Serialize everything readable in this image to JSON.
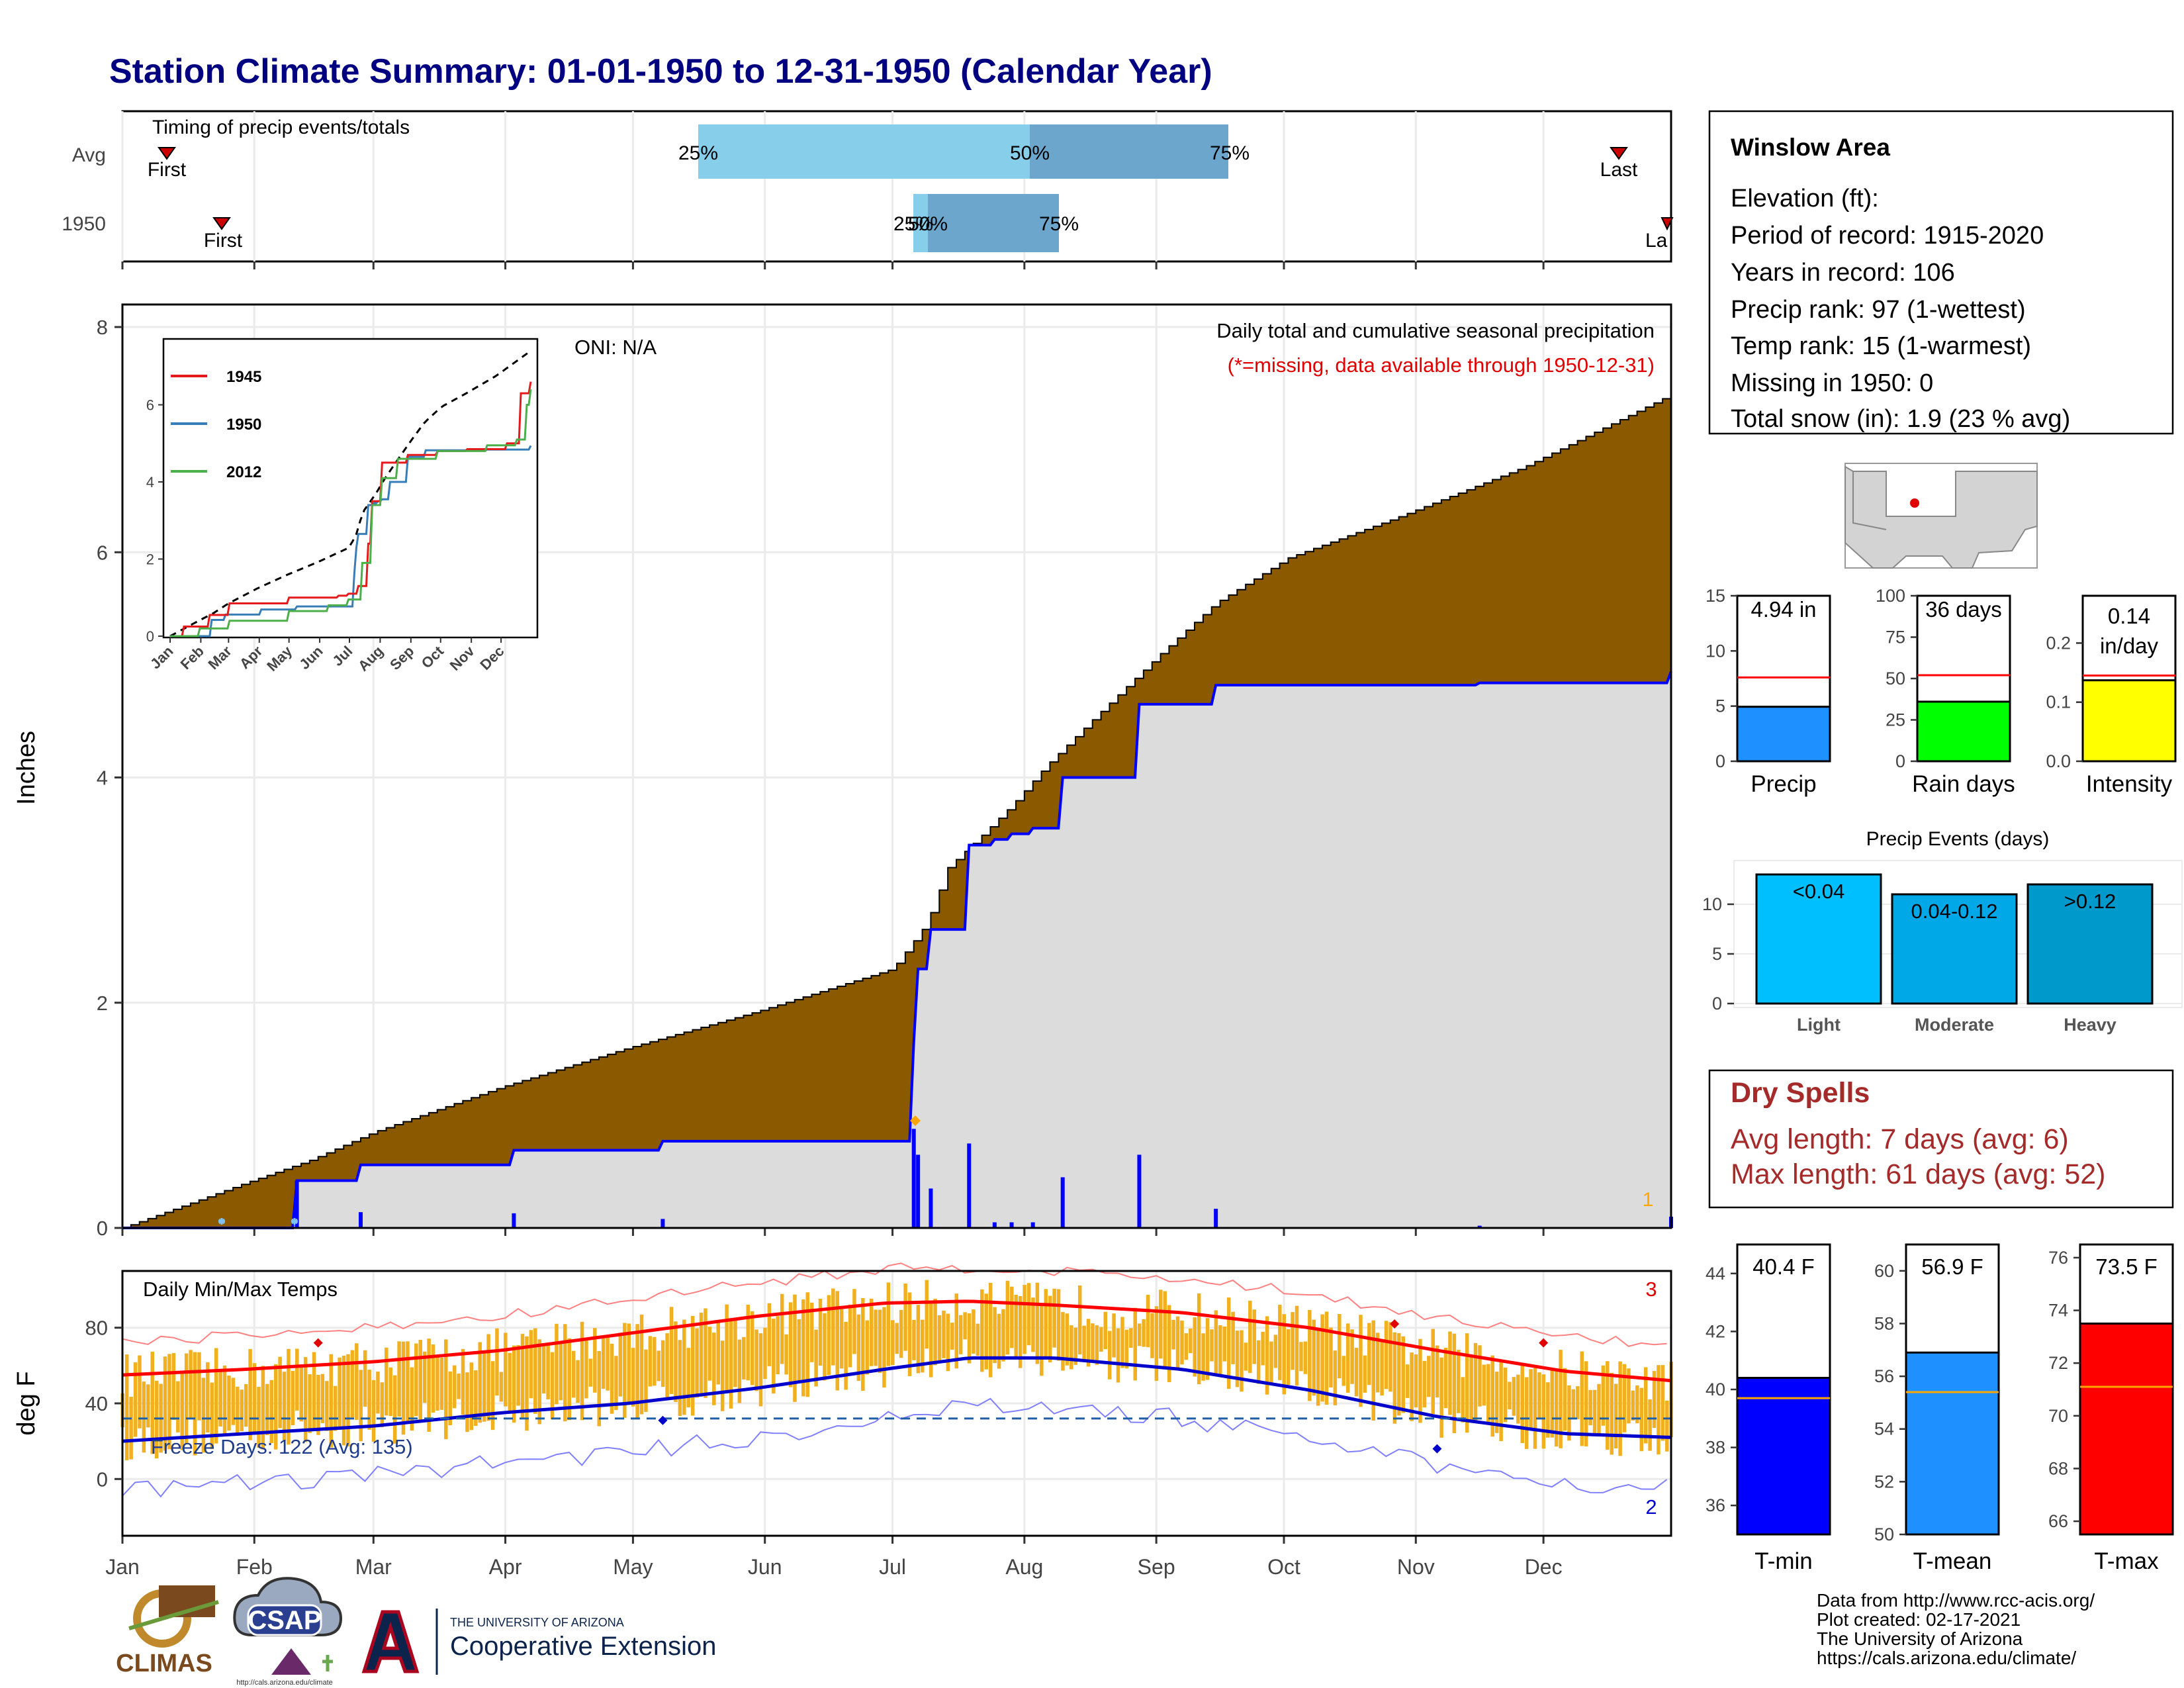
{
  "page": {
    "title": "Station Climate Summary: 01-01-1950 to 12-31-1950 (Calendar Year)",
    "colors": {
      "title": "#000080",
      "cumAvg": "#8B5A00",
      "cumYear": "#DCDCDC",
      "yearLine": "#0000FF",
      "tempBar": "#F0B020",
      "tmaxLine": "#FF0000",
      "tminLine": "#0000CD",
      "dry": "#A52A2A",
      "freezeLine": "#1F5FA8"
    }
  },
  "timing": {
    "label": "Timing of precip events/totals",
    "rows": [
      {
        "name": "Avg",
        "first": "First",
        "last": "Last",
        "p25": "25%",
        "p50": "50%",
        "p75": "75%"
      },
      {
        "name": "1950",
        "first": "First",
        "last": "La",
        "p25": "25%",
        "p50": "50%",
        "p75": "75%"
      }
    ]
  },
  "precip_panel": {
    "ylabel": "Inches",
    "oni": "ONI: N/A",
    "subtitle1": "Daily total and cumulative seasonal precipitation",
    "subtitle2": "(*=missing, data available through 1950-12-31)",
    "right_count": "1",
    "yticks": [
      "0",
      "2",
      "4",
      "6",
      "8"
    ]
  },
  "inset": {
    "yticks": [
      "0",
      "2",
      "4",
      "6"
    ],
    "xticks": [
      "Jan",
      "Feb",
      "Mar",
      "Apr",
      "May",
      "Jun",
      "Jul",
      "Aug",
      "Sep",
      "Oct",
      "Nov",
      "Dec"
    ],
    "legend": [
      {
        "name": "1945",
        "color": "#E41A1C"
      },
      {
        "name": "1950",
        "color": "#377EB8"
      },
      {
        "name": "2012",
        "color": "#4DAF4A"
      }
    ]
  },
  "temp_panel": {
    "ylabel": "deg F",
    "label": "Daily Min/Max Temps",
    "freeze": "Freeze Days: 122 (Avg: 135)",
    "count_max": "3",
    "count_min": "2",
    "yticks": [
      "0",
      "40",
      "80"
    ]
  },
  "months": [
    "Jan",
    "Feb",
    "Mar",
    "Apr",
    "May",
    "Jun",
    "Jul",
    "Aug",
    "Sep",
    "Oct",
    "Nov",
    "Dec"
  ],
  "info": {
    "station": "Winslow Area",
    "lines": [
      "Elevation (ft):",
      "Period of record: 1915-2020",
      "Years in record: 106",
      "Precip rank: 97 (1-wettest)",
      "Temp rank: 15 (1-warmest)",
      "Missing in 1950: 0",
      "Total snow (in): 1.9 (23 % avg)"
    ]
  },
  "mini_bars": [
    {
      "name": "Precip",
      "label": "4.94 in",
      "value": 4.94,
      "avg": 7.6,
      "max": 15,
      "ticks": [
        "0",
        "5",
        "10",
        "15"
      ],
      "color": "#1E90FF"
    },
    {
      "name": "Rain days",
      "label": "36 days",
      "value": 36,
      "avg": 52,
      "max": 100,
      "ticks": [
        "0",
        "25",
        "50",
        "75",
        "100"
      ],
      "color": "#00FF00"
    },
    {
      "name": "Intensity",
      "label": "0.14",
      "label2": "in/day",
      "value": 0.137,
      "avg": 0.145,
      "max": 0.28,
      "ticks": [
        "0.0",
        "0.1",
        "0.2"
      ],
      "color": "#FFFF00"
    }
  ],
  "events": {
    "title": "Precip Events (days)",
    "categories": [
      "Light",
      "Moderate",
      "Heavy"
    ],
    "labels": [
      "<0.04",
      "0.04-0.12",
      ">0.12"
    ],
    "values": [
      13,
      11,
      12
    ],
    "ymax": 14,
    "ticks": [
      "0",
      "5",
      "10"
    ],
    "colors": [
      "#00BFFF",
      "#00A8E8",
      "#0099CC"
    ]
  },
  "dry": {
    "title": "Dry Spells",
    "avg": "Avg length: 7 days (avg: 6)",
    "max": "Max length: 61 days (avg: 52)"
  },
  "temp_bars": [
    {
      "name": "T-min",
      "label": "40.4 F",
      "value": 40.4,
      "avg": 39.7,
      "min": 35,
      "max": 45,
      "ticks": [
        "36",
        "38",
        "40",
        "42",
        "44"
      ],
      "color": "#0000FF"
    },
    {
      "name": "T-mean",
      "label": "56.9 F",
      "value": 56.9,
      "avg": 55.4,
      "min": 50,
      "max": 61,
      "ticks": [
        "50",
        "52",
        "54",
        "56",
        "58",
        "60"
      ],
      "color": "#1E90FF"
    },
    {
      "name": "T-max",
      "label": "73.5 F",
      "value": 73.5,
      "avg": 71.1,
      "min": 65.5,
      "max": 76.5,
      "ticks": [
        "66",
        "68",
        "70",
        "72",
        "74",
        "76"
      ],
      "color": "#FF0000"
    }
  ],
  "footer": {
    "lines": [
      "Data from http://www.rcc-acis.org/",
      "Plot created: 02-17-2021",
      "The University of Arizona",
      "https://cals.arizona.edu/climate/"
    ],
    "climas": "CLIMAS",
    "csap": "CSAP",
    "csap_url": "http://cals.arizona.edu/climate",
    "ua_top": "THE UNIVERSITY OF ARIZONA",
    "ua_bottom": "Cooperative Extension"
  },
  "chart_data": [
    {
      "type": "area",
      "title": "Daily total and cumulative seasonal precipitation",
      "ylabel": "Inches",
      "ylim": [
        0,
        8.2
      ],
      "x_units": "day of year",
      "series": [
        {
          "name": "",
          "x": [
            1,
            30,
            45,
            60,
            90,
            120,
            150,
            182,
            190,
            195,
            202,
            210,
            218,
            230,
            245,
            258,
            275,
            300,
            330,
            365
          ],
          "values": [
            0.0,
            0.4,
            0.6,
            0.85,
            1.25,
            1.6,
            1.92,
            2.3,
            2.7,
            3.2,
            3.45,
            3.75,
            4.1,
            4.55,
            5.1,
            5.55,
            5.95,
            6.3,
            6.75,
            7.4
          ]
        },
        {
          "name": "",
          "x": [
            1,
            40,
            42,
            55,
            57,
            90,
            93,
            125,
            128,
            186,
            187,
            188,
            191,
            194,
            200,
            206,
            210,
            215,
            222,
            237,
            240,
            255,
            258,
            310,
            320,
            364,
            365
          ],
          "values": [
            0.0,
            0.0,
            0.42,
            0.42,
            0.56,
            0.56,
            0.69,
            0.69,
            0.77,
            0.77,
            1.65,
            2.3,
            2.65,
            2.65,
            3.4,
            3.45,
            3.5,
            3.55,
            4.0,
            4.0,
            4.65,
            4.65,
            4.82,
            4.82,
            4.84,
            4.84,
            4.94
          ]
        }
      ]
    },
    {
      "type": "line",
      "title": "",
      "xlabel": "",
      "ylabel": "deg F",
      "ylim": [
        -30,
        110
      ],
      "series": [
        {
          "name": "",
          "x": [
            1,
            30,
            60,
            90,
            120,
            150,
            180,
            200,
            220,
            250,
            280,
            310,
            340,
            365
          ],
          "values": [
            55,
            58,
            62,
            68,
            77,
            86,
            93,
            94,
            92,
            88,
            80,
            68,
            57,
            52
          ]
        },
        {
          "name": "",
          "x": [
            1,
            30,
            60,
            90,
            120,
            150,
            180,
            200,
            220,
            250,
            280,
            310,
            340,
            365
          ],
          "values": [
            20,
            24,
            28,
            35,
            40,
            48,
            58,
            64,
            64,
            58,
            47,
            33,
            24,
            22
          ]
        }
      ]
    }
  ]
}
